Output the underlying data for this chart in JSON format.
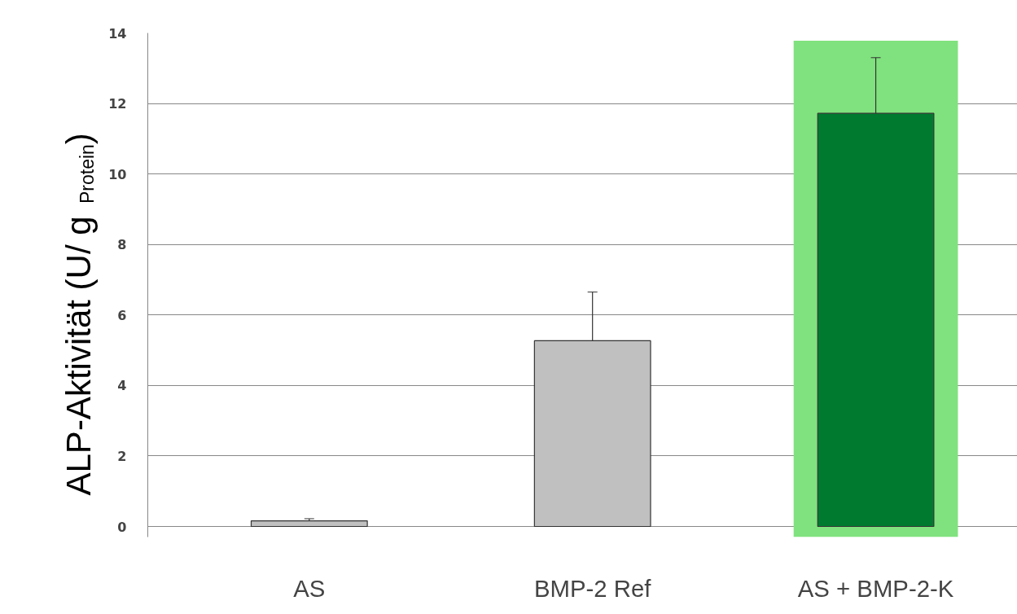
{
  "chart_data": {
    "type": "bar",
    "ylabel": "ALP-Aktivität (U/ g $_{Protein}$)",
    "categories": [
      "AS",
      "BMP-2 Ref",
      "AS + BMP-2-K"
    ],
    "values": [
      0.16,
      5.27,
      11.72
    ],
    "colors": [
      "#c0c0c0",
      "#c0c0c0",
      "#007a2f"
    ],
    "errors": [
      0.06,
      1.38,
      1.58
    ],
    "ylim": [
      -0.3,
      14
    ],
    "yticks": [
      0,
      2,
      4,
      6,
      8,
      10,
      12,
      14
    ],
    "grid": "y",
    "bands": [
      {
        "axis": "x",
        "from": "AS + BMP-2-K",
        "to": "AS + BMP-2-K",
        "color": "#80e27e"
      }
    ]
  }
}
